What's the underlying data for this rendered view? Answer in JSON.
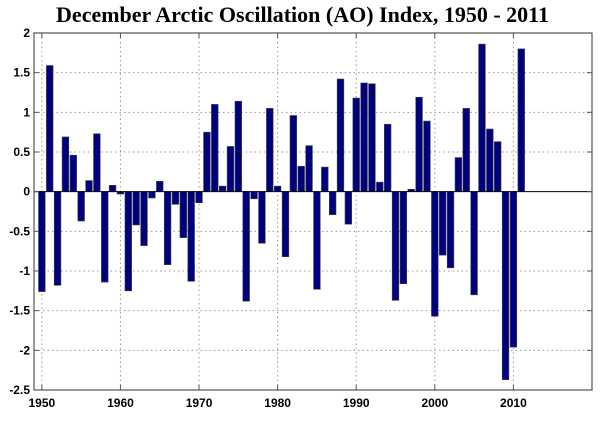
{
  "chart_data": {
    "type": "bar",
    "title": "December Arctic Oscillation (AO) Index, 1950 - 2011",
    "xlabel": "",
    "ylabel": "",
    "xlim": [
      1949,
      2020
    ],
    "ylim": [
      -2.5,
      2
    ],
    "grid": true,
    "bar_color": "#00007f",
    "xticks": [
      1950,
      1960,
      1970,
      1980,
      1990,
      2000,
      2010
    ],
    "yticks": [
      -2.5,
      -2,
      -1.5,
      -1,
      -0.5,
      0,
      0.5,
      1,
      1.5,
      2
    ],
    "ytick_labels": [
      "-2.5",
      "-2",
      "-1.5",
      "-1",
      "-0.5",
      "0",
      "0.5",
      "1",
      "1.5",
      "2"
    ],
    "x": [
      1950,
      1951,
      1952,
      1953,
      1954,
      1955,
      1956,
      1957,
      1958,
      1959,
      1960,
      1961,
      1962,
      1963,
      1964,
      1965,
      1966,
      1967,
      1968,
      1969,
      1970,
      1971,
      1972,
      1973,
      1974,
      1975,
      1976,
      1977,
      1978,
      1979,
      1980,
      1981,
      1982,
      1983,
      1984,
      1985,
      1986,
      1987,
      1988,
      1989,
      1990,
      1991,
      1992,
      1993,
      1994,
      1995,
      1996,
      1997,
      1998,
      1999,
      2000,
      2001,
      2002,
      2003,
      2004,
      2005,
      2006,
      2007,
      2008,
      2009,
      2010,
      2011
    ],
    "values": [
      -1.26,
      1.59,
      -1.18,
      0.69,
      0.46,
      -0.37,
      0.14,
      0.73,
      -1.14,
      0.08,
      -0.03,
      -1.25,
      -0.42,
      -0.68,
      -0.08,
      0.13,
      -0.92,
      -0.16,
      -0.58,
      -1.13,
      -0.14,
      0.75,
      1.1,
      0.07,
      0.57,
      1.14,
      -1.38,
      -0.09,
      -0.65,
      1.05,
      0.07,
      -0.82,
      0.96,
      0.32,
      0.58,
      -1.23,
      0.31,
      -0.29,
      1.42,
      -0.41,
      1.18,
      1.37,
      1.36,
      0.12,
      0.85,
      -1.37,
      -1.16,
      0.03,
      1.19,
      0.89,
      -1.57,
      -0.8,
      -0.96,
      0.43,
      1.05,
      -1.3,
      1.86,
      0.79,
      0.63,
      -2.37,
      -1.96,
      1.8
    ]
  }
}
